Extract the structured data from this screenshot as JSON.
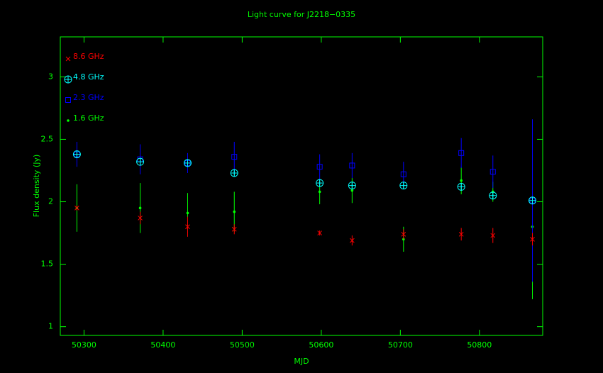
{
  "chart_data": {
    "type": "scatter",
    "title": "Light curve for J2218−0335",
    "x_label": "MJD",
    "y_label": "Flux density (Jy)",
    "x": [
      50291,
      50371,
      50431,
      50490,
      50598,
      50639,
      50704,
      50777,
      50817,
      50867
    ],
    "series": [
      {
        "name": "8.6 GHz",
        "color": "#ff0000",
        "marker": "x",
        "values": [
          1.95,
          1.87,
          1.8,
          1.78,
          1.75,
          1.69,
          1.74,
          1.74,
          1.73,
          1.7
        ],
        "errors": [
          0.02,
          0.05,
          0.08,
          0.04,
          0.02,
          0.04,
          0.04,
          0.05,
          0.06,
          0.05
        ]
      },
      {
        "name": "4.8 GHz",
        "color": "#00ffff",
        "marker": "circle-plus",
        "values": [
          2.38,
          2.32,
          2.31,
          2.23,
          2.15,
          2.13,
          2.13,
          2.12,
          2.05,
          2.01
        ],
        "errors": [
          0.03,
          0.03,
          0.03,
          0.03,
          0.03,
          0.03,
          0.03,
          0.03,
          0.03,
          0.03
        ]
      },
      {
        "name": "2.3 GHz",
        "color": "#0000ff",
        "marker": "square",
        "values": [
          2.38,
          2.34,
          2.31,
          2.36,
          2.28,
          2.29,
          2.22,
          2.39,
          2.24,
          2.01
        ],
        "errors": [
          0.1,
          0.12,
          0.08,
          0.12,
          0.1,
          0.1,
          0.1,
          0.12,
          0.13,
          0.65
        ]
      },
      {
        "name": "1.6 GHz",
        "color": "#00ff00",
        "marker": "dot",
        "values": [
          1.95,
          1.95,
          1.91,
          1.92,
          2.08,
          2.09,
          1.7,
          2.17,
          2.08,
          1.8
        ],
        "errors": [
          0.19,
          0.2,
          0.16,
          0.16,
          0.1,
          0.1,
          0.1,
          0.11,
          0.08,
          0.58
        ]
      }
    ],
    "xlim": [
      50270,
      50880
    ],
    "xticks": [
      50300,
      50400,
      50500,
      50600,
      50700,
      50800
    ],
    "ylim": [
      0.93,
      3.32
    ],
    "yticks": [
      1,
      1.5,
      2,
      2.5,
      3
    ],
    "axis_color": "#00ff00",
    "legend": "upper left"
  }
}
